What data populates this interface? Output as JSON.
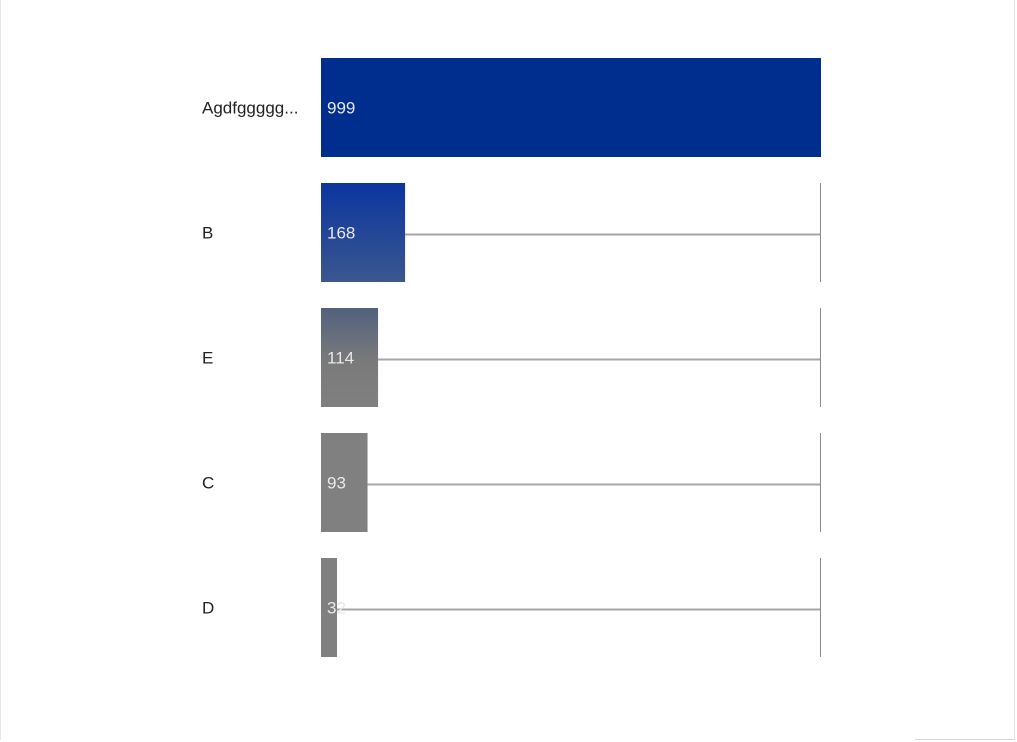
{
  "chart_data": {
    "type": "bar",
    "orientation": "horizontal",
    "title": "",
    "xlabel": "",
    "ylabel": "",
    "xlim": [
      0,
      999
    ],
    "grid": false,
    "legend": "none",
    "categories": [
      "Agdfggggg...",
      "B",
      "E",
      "C",
      "D"
    ],
    "values": [
      999,
      168,
      114,
      93,
      32
    ],
    "data_labels": [
      "999",
      "168",
      "114",
      "93",
      "32"
    ],
    "colors": {
      "top": "#002e8e",
      "low": "#808080",
      "track_line": "#a6a6a6",
      "label_on_bar": "#e8e8e8"
    }
  }
}
